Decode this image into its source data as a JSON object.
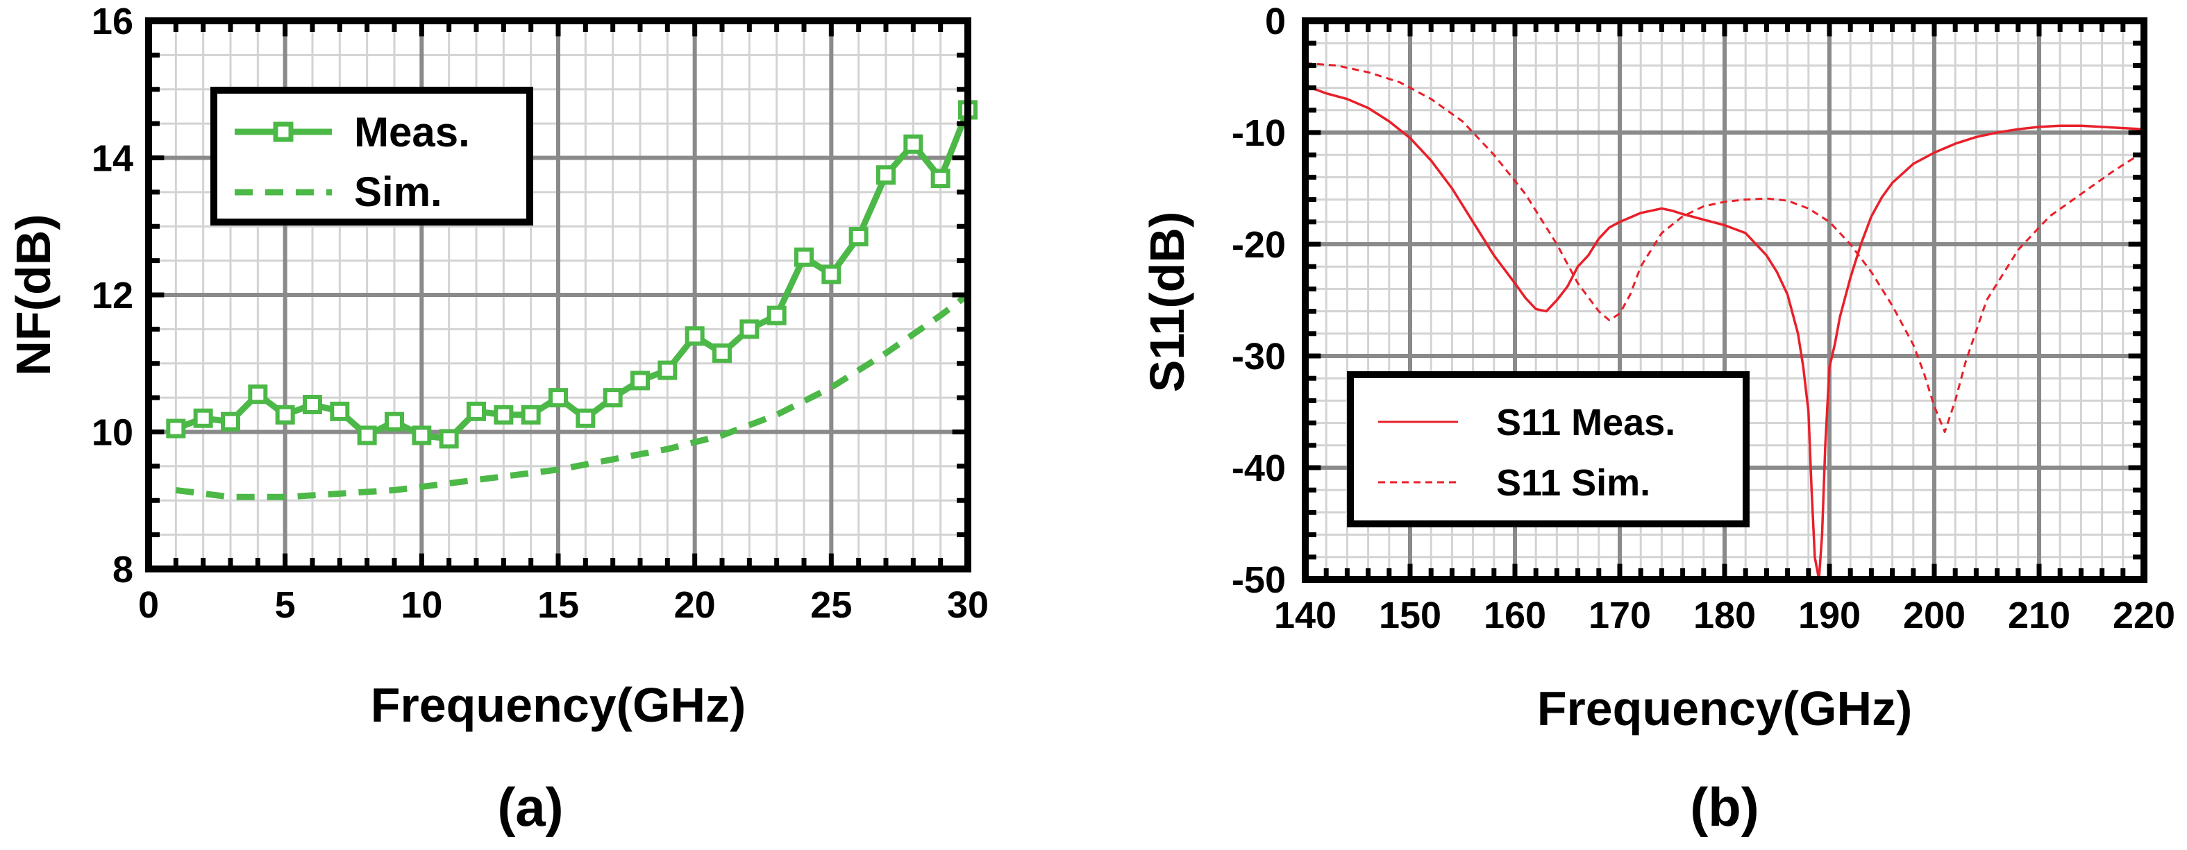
{
  "chart_data": [
    {
      "type": "line",
      "panel_label": "(a)",
      "xlabel": "Frequency(GHz)",
      "ylabel": "NF(dB)",
      "xlim": [
        0,
        30
      ],
      "ylim": [
        8,
        16
      ],
      "xticks": [
        "0",
        "5",
        "10",
        "15",
        "20",
        "25",
        "30"
      ],
      "yticks": [
        "8",
        "10",
        "12",
        "14",
        "16"
      ],
      "grid": true,
      "legend_position": "top-left",
      "series": [
        {
          "name": "Meas.",
          "color": "#4cb847",
          "style": "solid-square-markers",
          "x": [
            1,
            2,
            3,
            4,
            5,
            6,
            7,
            8,
            9,
            10,
            11,
            12,
            13,
            14,
            15,
            16,
            17,
            18,
            19,
            20,
            21,
            22,
            23,
            24,
            25,
            26,
            27,
            28,
            29,
            30
          ],
          "y": [
            10.05,
            10.2,
            10.15,
            10.55,
            10.25,
            10.4,
            10.3,
            9.95,
            10.15,
            9.95,
            9.9,
            10.3,
            10.25,
            10.25,
            10.5,
            10.2,
            10.5,
            10.75,
            10.9,
            11.4,
            11.15,
            11.5,
            11.7,
            12.55,
            12.3,
            12.85,
            13.75,
            14.2,
            13.7,
            14.7
          ]
        },
        {
          "name": "Sim.",
          "color": "#4cb847",
          "style": "dashed",
          "x": [
            1,
            3,
            5,
            7,
            9,
            11,
            13,
            15,
            17,
            19,
            21,
            23,
            25,
            27,
            29,
            30
          ],
          "y": [
            9.15,
            9.05,
            9.05,
            9.1,
            9.15,
            9.25,
            9.35,
            9.45,
            9.6,
            9.75,
            9.95,
            10.25,
            10.65,
            11.15,
            11.7,
            12.0
          ]
        }
      ]
    },
    {
      "type": "line",
      "panel_label": "(b)",
      "xlabel": "Frequency(GHz)",
      "ylabel": "S11(dB)",
      "xlim": [
        140,
        220
      ],
      "ylim": [
        -50,
        0
      ],
      "xticks": [
        "140",
        "150",
        "160",
        "170",
        "180",
        "190",
        "200",
        "210",
        "220"
      ],
      "yticks": [
        "0",
        "-10",
        "-20",
        "-30",
        "-40",
        "-50"
      ],
      "grid": true,
      "legend_position": "bottom-left",
      "series": [
        {
          "name": "S11 Meas.",
          "color": "#e8202a",
          "style": "solid",
          "x": [
            140,
            142,
            144,
            146,
            148,
            150,
            152,
            154,
            156,
            158,
            160,
            161,
            162,
            163,
            164,
            165,
            166,
            167,
            168,
            169,
            170,
            171,
            172,
            173,
            174,
            175,
            176,
            178,
            180,
            182,
            184,
            185,
            186,
            187,
            187.5,
            188,
            188.3,
            188.6,
            189,
            189.3,
            189.6,
            190,
            190.5,
            191,
            192,
            193,
            194,
            195,
            196,
            198,
            200,
            202,
            204,
            206,
            208,
            210,
            212,
            214,
            216,
            218,
            220
          ],
          "y": [
            -5.8,
            -6.5,
            -7.0,
            -7.8,
            -9.0,
            -10.5,
            -12.5,
            -15.0,
            -18.0,
            -21.0,
            -23.5,
            -24.8,
            -25.8,
            -26.0,
            -25.0,
            -23.8,
            -22.0,
            -21.0,
            -19.5,
            -18.5,
            -18.0,
            -17.6,
            -17.2,
            -17.0,
            -16.8,
            -17.0,
            -17.3,
            -17.8,
            -18.3,
            -19.0,
            -21.0,
            -22.5,
            -24.5,
            -28.0,
            -31.0,
            -35.0,
            -42.0,
            -48.0,
            -50.0,
            -46.0,
            -38.0,
            -31.0,
            -29.0,
            -26.5,
            -23.0,
            -20.0,
            -17.5,
            -15.8,
            -14.5,
            -12.8,
            -11.8,
            -11.0,
            -10.4,
            -10.0,
            -9.7,
            -9.5,
            -9.4,
            -9.4,
            -9.5,
            -9.6,
            -9.7
          ]
        },
        {
          "name": "S11 Sim.",
          "color": "#e8202a",
          "style": "dashed",
          "x": [
            140,
            143,
            146,
            149,
            152,
            155,
            158,
            161,
            164,
            166,
            168,
            169,
            170,
            171,
            172,
            174,
            176,
            178,
            180,
            182,
            184,
            186,
            188,
            190,
            192,
            194,
            196,
            198,
            199,
            200,
            201,
            202,
            203,
            205,
            208,
            211,
            214,
            217,
            220
          ],
          "y": [
            -3.8,
            -4.0,
            -4.6,
            -5.5,
            -7.0,
            -9.0,
            -12.0,
            -15.5,
            -20.0,
            -23.5,
            -26.0,
            -26.8,
            -26.2,
            -24.5,
            -22.0,
            -19.0,
            -17.5,
            -16.6,
            -16.2,
            -16.0,
            -15.9,
            -16.1,
            -16.8,
            -18.0,
            -20.0,
            -22.5,
            -25.5,
            -29.0,
            -31.5,
            -34.5,
            -36.8,
            -34.0,
            -30.5,
            -25.0,
            -20.5,
            -17.5,
            -15.5,
            -13.5,
            -11.7
          ]
        }
      ]
    }
  ]
}
